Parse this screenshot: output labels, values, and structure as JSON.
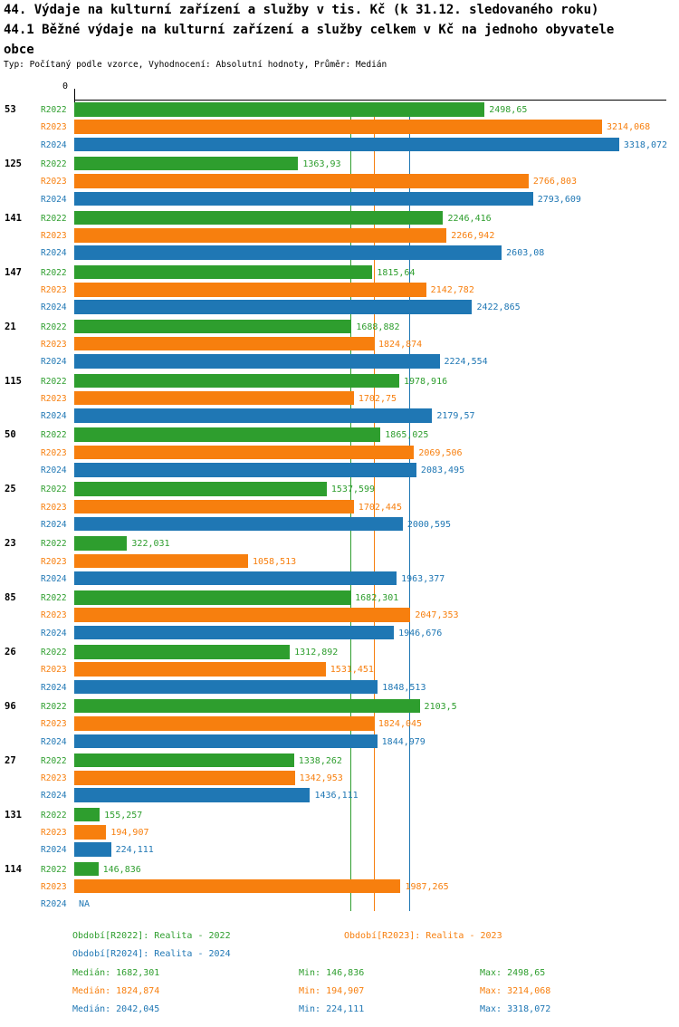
{
  "header": {
    "title_line1": "44. Výdaje na kulturní zařízení a služby v tis. Kč (k 31.12. sledovaného roku)",
    "title_line2": "44.1 Běžné výdaje na kulturní zařízení a služby celkem v Kč na jednoho obyvatele",
    "title_line3": "obce",
    "subtitle": "Typ: Počítaný podle vzorce, Vyhodnocení: Absolutní hodnoty, Průměr: Medián"
  },
  "axis": {
    "zero_label": "0"
  },
  "colors": {
    "r2022": "#2e9e2e",
    "r2023": "#f77f0e",
    "r2024": "#1f77b4"
  },
  "chart_data": {
    "type": "bar",
    "orientation": "horizontal",
    "title": "44. Výdaje na kulturní zařízení a služby v tis. Kč (k 31.12. sledovaného roku)",
    "subtitle": "44.1 Běžné výdaje na kulturní zařízení a služby celkem v Kč na jednoho obyvatele obce",
    "series_labels": [
      "R2022",
      "R2023",
      "R2024"
    ],
    "x_axis": {
      "min": 0,
      "max": 3600,
      "zero_label": "0"
    },
    "groups": [
      {
        "category": "53",
        "values": [
          2498.65,
          3214.068,
          3318.072
        ],
        "labels": [
          "2498,65",
          "3214,068",
          "3318,072"
        ]
      },
      {
        "category": "125",
        "values": [
          1363.93,
          2766.803,
          2793.609
        ],
        "labels": [
          "1363,93",
          "2766,803",
          "2793,609"
        ]
      },
      {
        "category": "141",
        "values": [
          2246.416,
          2266.942,
          2603.08
        ],
        "labels": [
          "2246,416",
          "2266,942",
          "2603,08"
        ]
      },
      {
        "category": "147",
        "values": [
          1815.64,
          2142.782,
          2422.865
        ],
        "labels": [
          "1815,64",
          "2142,782",
          "2422,865"
        ]
      },
      {
        "category": "21",
        "values": [
          1688.882,
          1824.874,
          2224.554
        ],
        "labels": [
          "1688,882",
          "1824,874",
          "2224,554"
        ]
      },
      {
        "category": "115",
        "values": [
          1978.916,
          1702.75,
          2179.57
        ],
        "labels": [
          "1978,916",
          "1702,75",
          "2179,57"
        ]
      },
      {
        "category": "50",
        "values": [
          1865.025,
          2069.506,
          2083.495
        ],
        "labels": [
          "1865,025",
          "2069,506",
          "2083,495"
        ]
      },
      {
        "category": "25",
        "values": [
          1537.599,
          1702.445,
          2000.595
        ],
        "labels": [
          "1537,599",
          "1702,445",
          "2000,595"
        ]
      },
      {
        "category": "23",
        "values": [
          322.031,
          1058.513,
          1963.377
        ],
        "labels": [
          "322,031",
          "1058,513",
          "1963,377"
        ]
      },
      {
        "category": "85",
        "values": [
          1682.301,
          2047.353,
          1946.676
        ],
        "labels": [
          "1682,301",
          "2047,353",
          "1946,676"
        ]
      },
      {
        "category": "26",
        "values": [
          1312.892,
          1531.451,
          1848.513
        ],
        "labels": [
          "1312,892",
          "1531,451",
          "1848,513"
        ]
      },
      {
        "category": "96",
        "values": [
          2103.5,
          1824.045,
          1844.979
        ],
        "labels": [
          "2103,5",
          "1824,045",
          "1844,979"
        ]
      },
      {
        "category": "27",
        "values": [
          1338.262,
          1342.953,
          1436.111
        ],
        "labels": [
          "1338,262",
          "1342,953",
          "1436,111"
        ]
      },
      {
        "category": "131",
        "values": [
          155.257,
          194.907,
          224.111
        ],
        "labels": [
          "155,257",
          "194,907",
          "224,111"
        ]
      },
      {
        "category": "114",
        "values": [
          146.836,
          1987.265,
          null
        ],
        "labels": [
          "146,836",
          "1987,265",
          "NA"
        ]
      }
    ],
    "median_lines": [
      1682.301,
      1824.874,
      2042.045
    ],
    "legend_position": "bottom",
    "grid": false
  },
  "legend": [
    {
      "series": "R2022",
      "label": "Období[R2022]: Realita - 2022"
    },
    {
      "series": "R2023",
      "label": "Období[R2023]: Realita - 2023"
    },
    {
      "series": "R2024",
      "label": "Období[R2024]: Realita - 2024"
    }
  ],
  "stats": [
    {
      "series": "R2022",
      "median": "Medián: 1682,301",
      "min": "Min: 146,836",
      "max": "Max: 2498,65"
    },
    {
      "series": "R2023",
      "median": "Medián: 1824,874",
      "min": "Min: 194,907",
      "max": "Max: 3214,068"
    },
    {
      "series": "R2024",
      "median": "Medián: 2042,045",
      "min": "Min: 224,111",
      "max": "Max: 3318,072"
    }
  ]
}
